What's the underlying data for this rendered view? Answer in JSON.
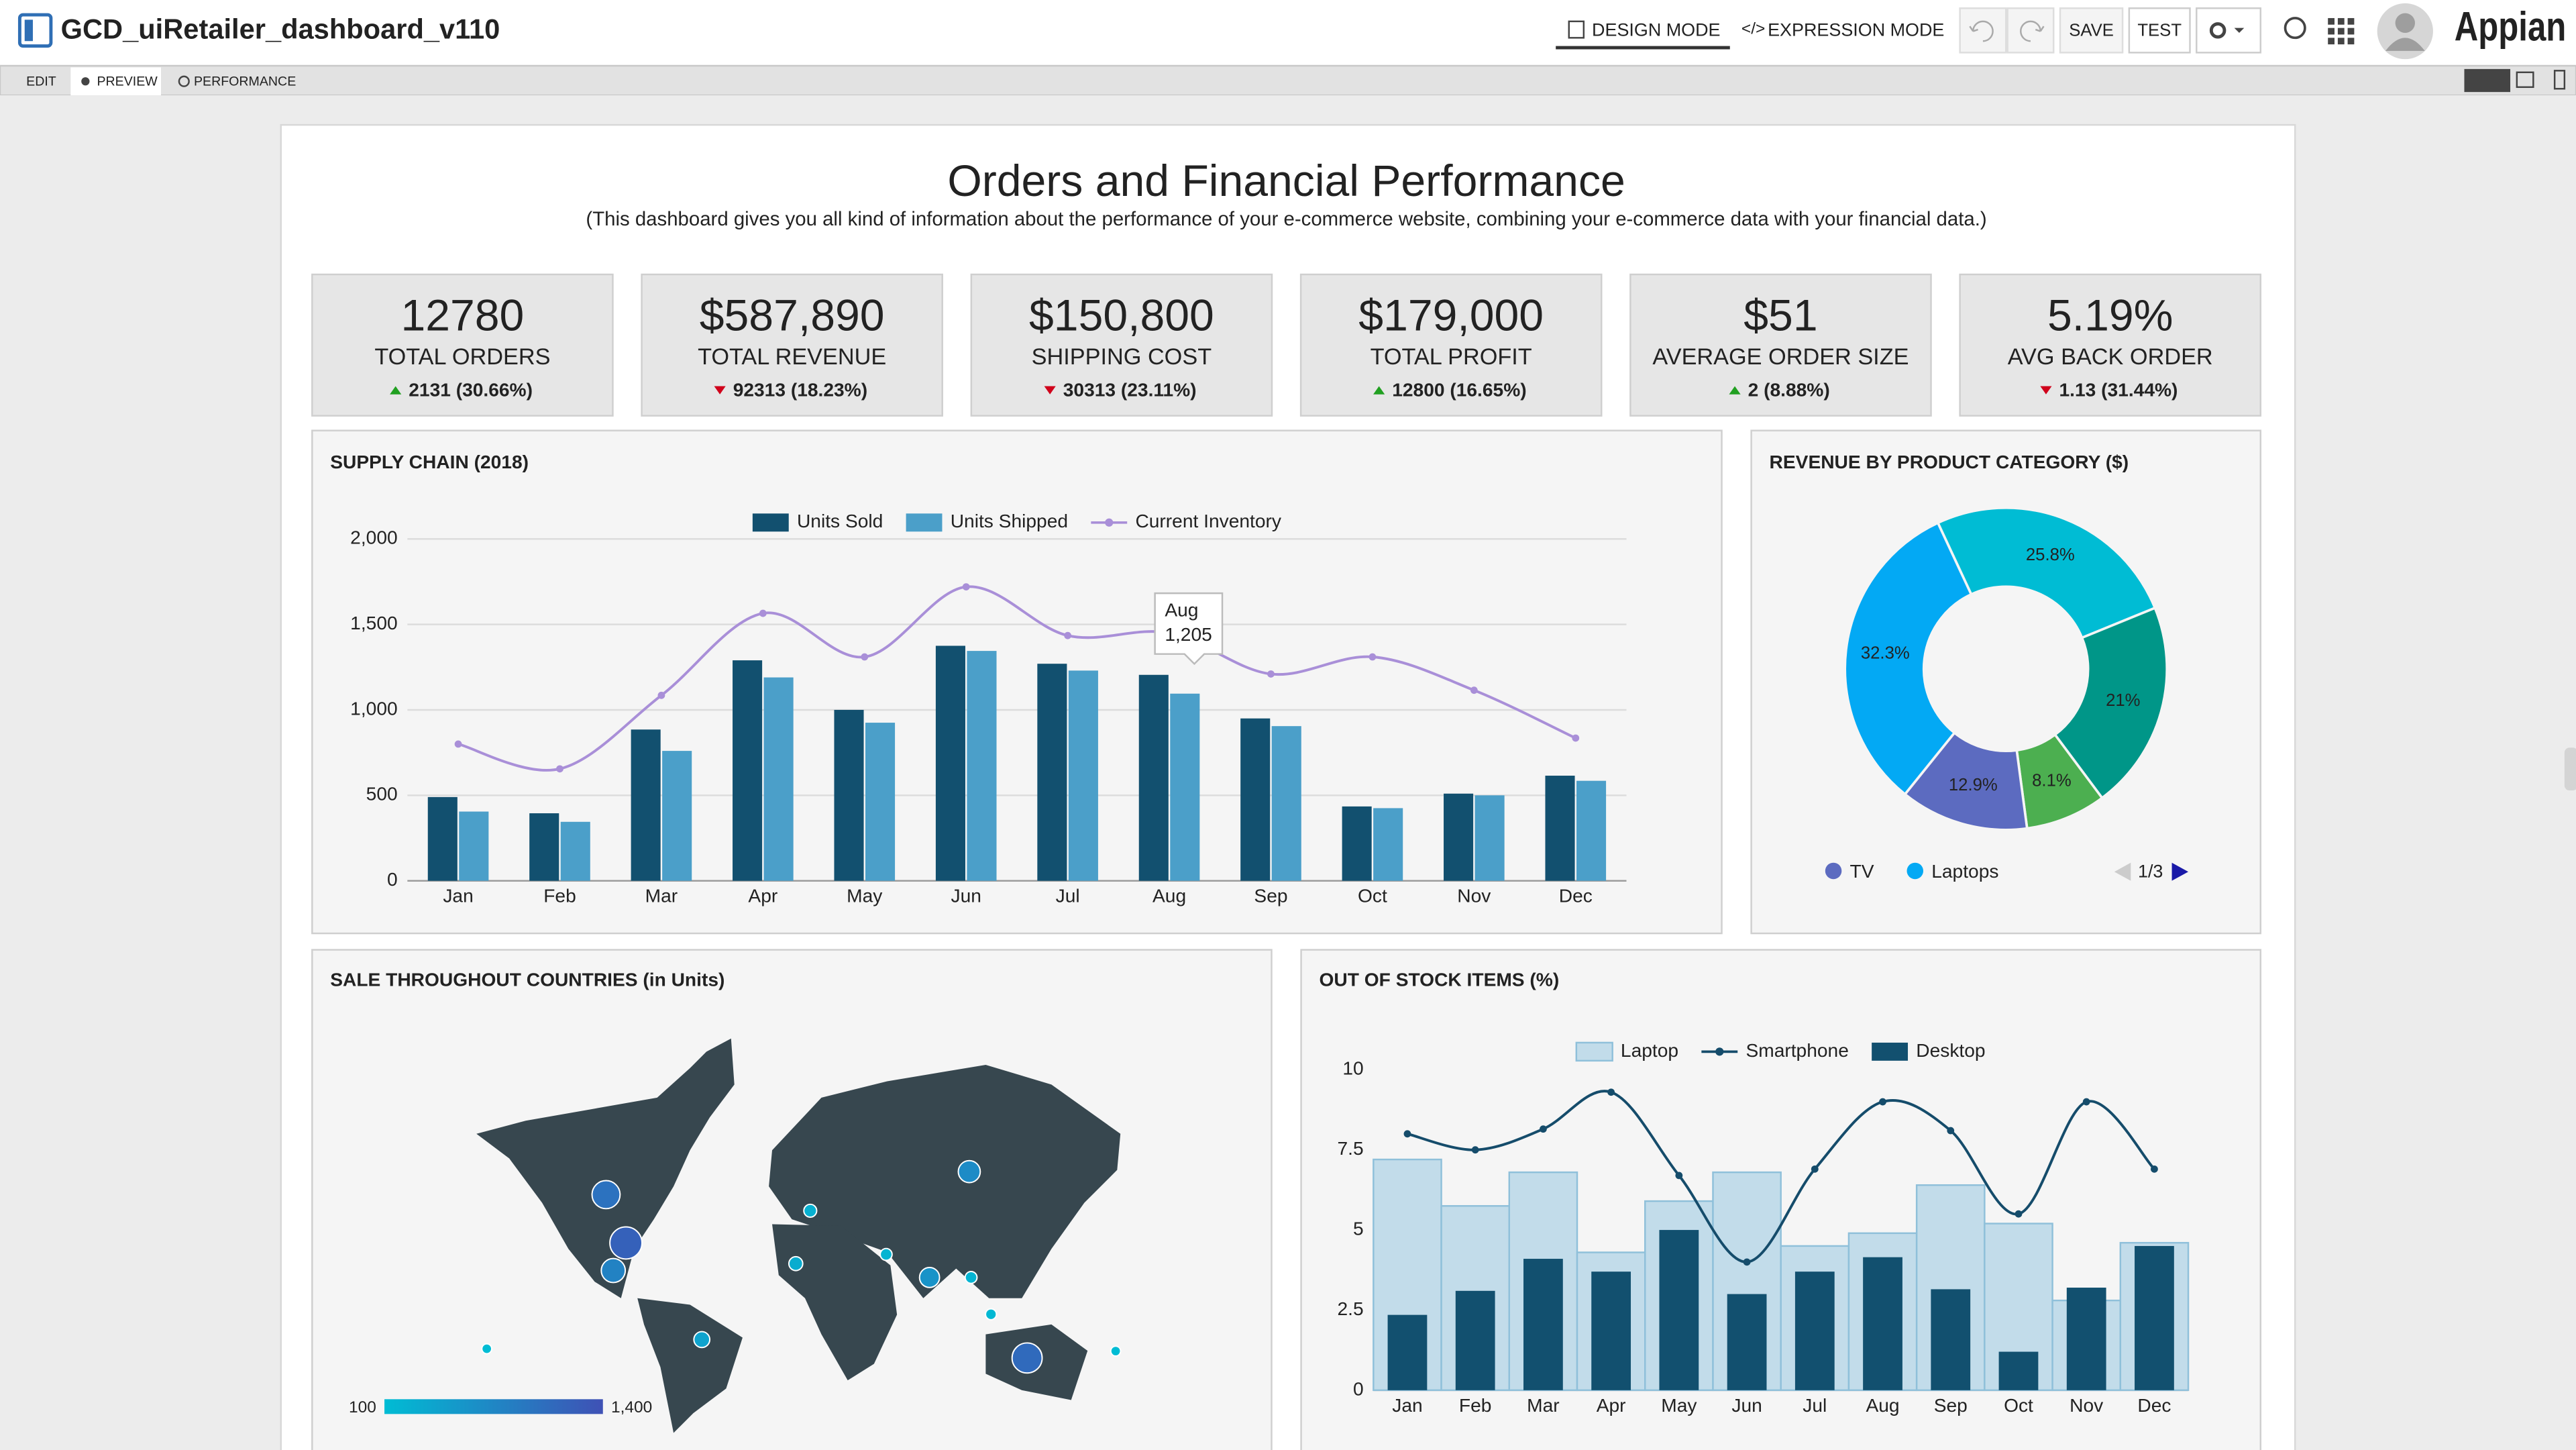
{
  "app": {
    "title": "GCD_uiRetailer_dashboard_v110",
    "modes": [
      "DESIGN MODE",
      "EXPRESSION MODE"
    ],
    "actions": [
      "SAVE",
      "TEST"
    ],
    "logo": "Appian",
    "tabs": [
      "EDIT",
      "PREVIEW",
      "PERFORMANCE"
    ]
  },
  "dashboard": {
    "title": "Orders and Financial Performance",
    "subtitle": "(This dashboard gives you all kind of information about the performance of your e-commerce website, combining your e-commerce data with your financial data.)"
  },
  "kpis": [
    {
      "value": "12780",
      "label": "TOTAL ORDERS",
      "change": "2131 (30.66%)",
      "trend": "up"
    },
    {
      "value": "$587,890",
      "label": "TOTAL REVENUE",
      "change": "92313 (18.23%)",
      "trend": "down"
    },
    {
      "value": "$150,800",
      "label": "SHIPPING COST",
      "change": "30313 (23.11%)",
      "trend": "down"
    },
    {
      "value": "$179,000",
      "label": "TOTAL PROFIT",
      "change": "12800 (16.65%)",
      "trend": "up"
    },
    {
      "value": "$51",
      "label": "AVERAGE ORDER SIZE",
      "change": "2 (8.88%)",
      "trend": "up"
    },
    {
      "value": "5.19%",
      "label": "AVG BACK ORDER",
      "change": "1.13 (31.44%)",
      "trend": "down"
    }
  ],
  "chart_data": [
    {
      "type": "combo",
      "title": "SUPPLY CHAIN (2018)",
      "categories": [
        "Jan",
        "Feb",
        "Mar",
        "Apr",
        "May",
        "Jun",
        "Jul",
        "Aug",
        "Sep",
        "Oct",
        "Nov",
        "Dec"
      ],
      "series": [
        {
          "name": "Units Sold",
          "type": "bar",
          "color": "#12506f",
          "values": [
            490,
            395,
            885,
            1290,
            1000,
            1375,
            1270,
            1205,
            950,
            435,
            510,
            615
          ]
        },
        {
          "name": "Units Shipped",
          "type": "bar",
          "color": "#4b9fc9",
          "values": [
            405,
            345,
            760,
            1190,
            925,
            1345,
            1230,
            1095,
            905,
            425,
            500,
            585
          ]
        },
        {
          "name": "Current Inventory",
          "type": "line",
          "color": "#a98fd8",
          "values": [
            800,
            655,
            1085,
            1565,
            1310,
            1720,
            1435,
            1450,
            1210,
            1310,
            1115,
            835
          ]
        }
      ],
      "ylim": [
        0,
        2000
      ],
      "yticks": [
        0,
        500,
        {
          "value": 1000,
          "label": "1,000"
        },
        {
          "value": 1500,
          "label": "1,500"
        },
        {
          "value": 2000,
          "label": "2,000"
        }
      ],
      "grid": true,
      "tooltip": {
        "title": "Aug",
        "label": "1,205"
      }
    },
    {
      "type": "pie",
      "title": "REVENUE BY PRODUCT CATEGORY ($)",
      "categories": [
        null,
        null,
        null,
        "TV",
        "Laptops"
      ],
      "values": [
        25.8,
        21,
        8.1,
        12.9,
        32.3
      ],
      "value_labels": [
        "25.8%",
        "21%",
        "8.1%",
        "12.9%",
        "32.3%"
      ],
      "colors": [
        "#00bcd4",
        "#009688",
        "#4caf50",
        "#5c6bc0",
        "#03a9f4"
      ],
      "legend_page": "1/3"
    },
    {
      "type": "map",
      "title": "SALE THROUGHOUT COUNTRIES (in Units)",
      "x": [
        -101,
        -90,
        -97,
        -48,
        132,
        100,
        12,
        4,
        54,
        78,
        101,
        112,
        -167,
        181
      ],
      "y": [
        45,
        24,
        12,
        -18,
        -26,
        55,
        38,
        15,
        19,
        9,
        9,
        -7,
        -22,
        -23
      ],
      "values": [
        1000,
        1200,
        800,
        400,
        1100,
        700,
        250,
        300,
        200,
        600,
        200,
        150,
        100,
        100
      ],
      "scale_min": 100,
      "scale_max": {
        "value": 1400,
        "label": "1,400"
      },
      "scale_colors": [
        "#00bcd4",
        "#3f51b5"
      ],
      "land_color": "#37474f"
    },
    {
      "type": "combo",
      "title": "OUT OF STOCK ITEMS (%)",
      "categories": [
        "Jan",
        "Feb",
        "Mar",
        "Apr",
        "May",
        "Jun",
        "Jul",
        "Aug",
        "Sep",
        "Oct",
        "Nov",
        "Dec"
      ],
      "series": [
        {
          "name": "Laptop",
          "type": "step",
          "color": "#c2dcea",
          "values": [
            7.2,
            5.75,
            6.8,
            4.3,
            5.9,
            6.8,
            4.5,
            4.9,
            6.4,
            5.2,
            2.8,
            4.6
          ]
        },
        {
          "name": "Smartphone",
          "type": "line",
          "color": "#154c6b",
          "values": [
            8.0,
            7.5,
            8.15,
            9.3,
            6.7,
            4.0,
            6.9,
            9.0,
            8.1,
            5.5,
            9.0,
            6.9
          ]
        },
        {
          "name": "Desktop",
          "type": "bar",
          "color": "#12506f",
          "values": [
            2.35,
            3.1,
            4.1,
            3.7,
            5.0,
            3.0,
            3.7,
            4.15,
            3.15,
            1.2,
            3.2,
            4.5
          ]
        }
      ],
      "ylim": [
        0,
        10
      ],
      "yticks": [
        0,
        2.5,
        5,
        7.5,
        10
      ],
      "grid": false
    }
  ]
}
